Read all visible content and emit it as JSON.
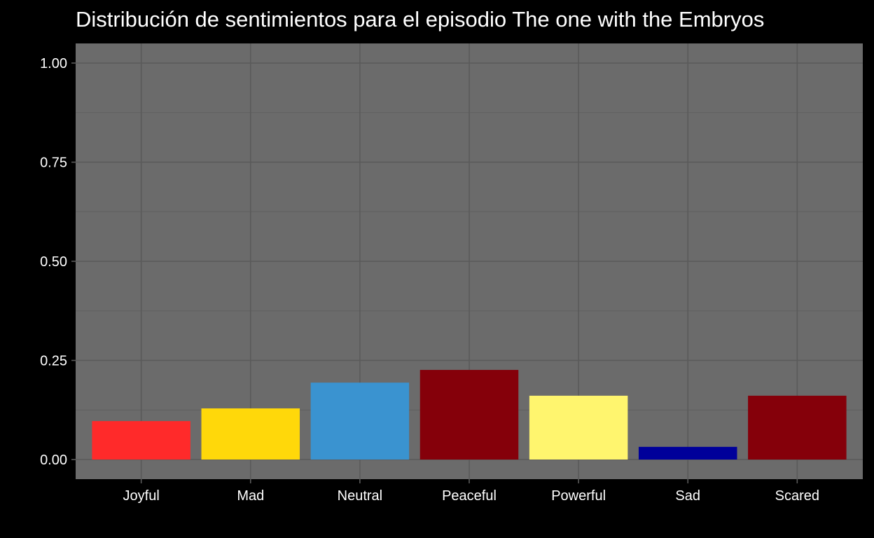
{
  "chart_data": {
    "type": "bar",
    "title": "Distribución de sentimientos para el episodio The one with the Embryos",
    "xlabel": "",
    "ylabel": "",
    "categories": [
      "Joyful",
      "Mad",
      "Neutral",
      "Peaceful",
      "Powerful",
      "Sad",
      "Scared"
    ],
    "values": [
      0.097,
      0.129,
      0.194,
      0.226,
      0.161,
      0.032,
      0.161
    ],
    "bar_colors": [
      "#ff2a2a",
      "#ffd80a",
      "#3a93d0",
      "#85000a",
      "#fff56e",
      "#00009a",
      "#85000a"
    ],
    "ylim": [
      0,
      1.05
    ],
    "y_ticks": [
      "0.00",
      "0.25",
      "0.50",
      "0.75",
      "1.00"
    ],
    "grid": true,
    "legend": "none",
    "colors": {
      "background": "#000000",
      "panel": "#6b6b6b",
      "grid_major": "#5a5a5a",
      "grid_minor": "#606060",
      "text": "#ffffff"
    }
  }
}
